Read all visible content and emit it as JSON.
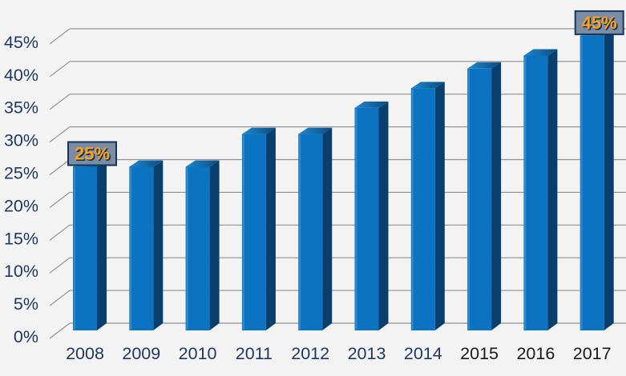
{
  "chart_data": {
    "type": "bar",
    "style": "3d-column",
    "title": "",
    "xlabel": "",
    "ylabel": "",
    "categories": [
      "2008",
      "2009",
      "2010",
      "2011",
      "2012",
      "2013",
      "2014",
      "2015",
      "2016",
      "2017"
    ],
    "values": [
      25,
      25,
      25,
      30,
      30,
      34,
      37,
      40,
      42,
      45
    ],
    "value_unit": "%",
    "ylim": [
      0,
      45
    ],
    "ytick_step": 5,
    "ytick_labels": [
      "0%",
      "5%",
      "10%",
      "15%",
      "20%",
      "25%",
      "30%",
      "35%",
      "40%",
      "45%"
    ],
    "grid": true,
    "legend": "none",
    "annotations": [
      {
        "category": "2008",
        "label": "25%"
      },
      {
        "category": "2017",
        "label": "45%"
      }
    ],
    "x_label_colors": [
      "navy",
      "navy",
      "navy",
      "navy",
      "navy",
      "navy",
      "navy",
      "black",
      "black",
      "black"
    ],
    "colors": {
      "background": "#F3F3F3",
      "gridline": "#8E8E8E",
      "bar_front": "#0B73C1",
      "bar_front_highlight": "#4FA0DC",
      "bar_side": "#093F6D",
      "bar_top_light": "#2187CC",
      "bar_top_dark": "#0A4C80",
      "tick_label_navy": "#1F3864",
      "tick_label_black": "#1A1A1A",
      "annotation_bg": "#7B8CA5",
      "annotation_border": "#16355C",
      "annotation_text": "#FFA019",
      "annotation_text_shadow": "#10304F"
    }
  }
}
